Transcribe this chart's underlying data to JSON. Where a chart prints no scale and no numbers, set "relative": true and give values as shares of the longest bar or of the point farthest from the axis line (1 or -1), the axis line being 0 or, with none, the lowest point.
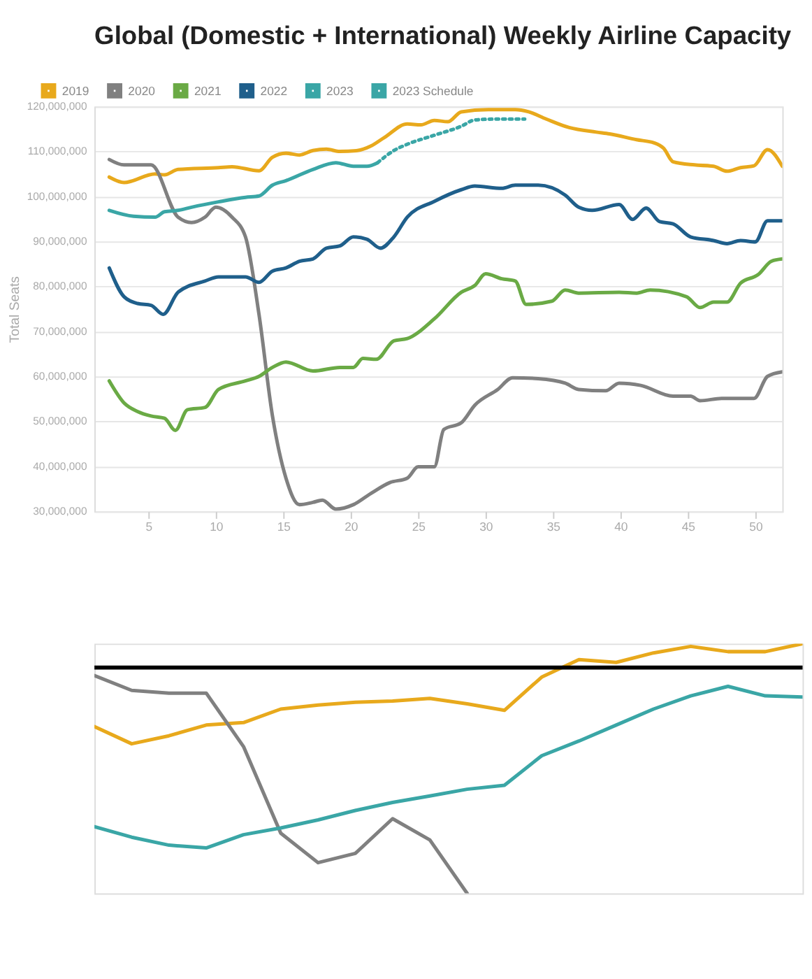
{
  "chart_data": [
    {
      "type": "line",
      "title": "Global (Domestic + International) Weekly Airline Capacity",
      "ylabel": "Total Seats",
      "xlim": [
        1,
        52
      ],
      "xticks": [
        5,
        10,
        15,
        20,
        25,
        30,
        35,
        40,
        45,
        50
      ],
      "ylim": [
        30000000,
        120000000
      ],
      "yticks": [
        {
          "value": 30000000,
          "label": "30,000,000"
        },
        {
          "value": 40000000,
          "label": "40,000,000"
        },
        {
          "value": 50000000,
          "label": "50,000,000"
        },
        {
          "value": 60000000,
          "label": "60,000,000"
        },
        {
          "value": 70000000,
          "label": "70,000,000"
        },
        {
          "value": 80000000,
          "label": "80,000,000"
        },
        {
          "value": 90000000,
          "label": "90,000,000"
        },
        {
          "value": 100000000,
          "label": "100,000,000"
        },
        {
          "value": 110000000,
          "label": "110,000,000"
        },
        {
          "value": 120000000,
          "label": "120,000,000"
        }
      ],
      "grid": "y",
      "legend": "top left",
      "marker": "none",
      "series": [
        {
          "name": "2019",
          "color": "#e8a91c",
          "line_style": "solid",
          "x": [
            2.1,
            3.2,
            5.5,
            6.2,
            7.2,
            10.2,
            11.2,
            13.2,
            14.2,
            15.2,
            16.2,
            17.2,
            18.2,
            19.2,
            20.5,
            21.5,
            22.5,
            24.2,
            25.2,
            26.2,
            27.2,
            28.2,
            30.2,
            32.2,
            33.2,
            34.5,
            36.2,
            38.2,
            39.2,
            41.2,
            42.5,
            43.2,
            43.9,
            45.5,
            46.9,
            47.9,
            48.9,
            49.9,
            50.9,
            52
          ],
          "values": [
            104300000,
            103100000,
            105000000,
            104800000,
            106000000,
            106400000,
            106600000,
            105700000,
            108700000,
            109600000,
            109200000,
            110200000,
            110500000,
            110000000,
            110200000,
            111200000,
            113100000,
            116100000,
            115900000,
            116900000,
            116600000,
            118800000,
            119300000,
            119300000,
            118800000,
            117200000,
            115300000,
            114300000,
            113900000,
            112600000,
            111900000,
            110700000,
            107700000,
            107000000,
            106700000,
            105600000,
            106400000,
            106800000,
            110400000,
            106700000
          ]
        },
        {
          "name": "2020",
          "color": "#808080",
          "line_style": "solid",
          "x": [
            2.1,
            3.2,
            5.2,
            7.2,
            8.2,
            9.2,
            10.0,
            11.2,
            12.2,
            13.2,
            14.2,
            15.2,
            16.2,
            17.2,
            17.9,
            18.9,
            20.2,
            21.5,
            22.9,
            24.2,
            25.0,
            26.2,
            26.9,
            28.2,
            29.2,
            30.9,
            32.0,
            33.9,
            35.9,
            36.9,
            38.9,
            39.9,
            41.5,
            43.9,
            45.2,
            45.9,
            47.5,
            49.9,
            50.9,
            52
          ],
          "values": [
            108200000,
            107000000,
            107000000,
            95400000,
            94200000,
            95400000,
            97600000,
            95400000,
            91000000,
            73800000,
            51200000,
            37400000,
            31500000,
            32000000,
            32500000,
            30500000,
            31500000,
            34000000,
            36400000,
            37400000,
            39900000,
            39900000,
            48200000,
            49700000,
            53600000,
            57100000,
            59700000,
            59500000,
            58500000,
            57100000,
            56800000,
            58500000,
            58000000,
            55600000,
            55600000,
            54600000,
            55100000,
            55100000,
            60000000,
            61000000
          ]
        },
        {
          "name": "2021",
          "color": "#6aaa45",
          "line_style": "solid",
          "x": [
            2.1,
            3.2,
            4.2,
            5.2,
            6.2,
            7.0,
            7.9,
            9.2,
            10.2,
            12.2,
            13.2,
            14.2,
            15.2,
            17.2,
            19.2,
            20.2,
            20.9,
            21.9,
            23.2,
            24.2,
            26.2,
            28.2,
            29.2,
            30.0,
            31.2,
            32.2,
            33.0,
            34.9,
            35.9,
            36.9,
            39.9,
            41.2,
            42.2,
            44.9,
            45.9,
            46.9,
            47.9,
            48.9,
            50.2,
            51.2,
            52
          ],
          "values": [
            59000000,
            54100000,
            52200000,
            51200000,
            50700000,
            48000000,
            52600000,
            53100000,
            57100000,
            59000000,
            60000000,
            62000000,
            63200000,
            61200000,
            62000000,
            62000000,
            64000000,
            63800000,
            67900000,
            68400000,
            72800000,
            78700000,
            80200000,
            82800000,
            81700000,
            81200000,
            76000000,
            76700000,
            79200000,
            78500000,
            78700000,
            78500000,
            79200000,
            77700000,
            75300000,
            76500000,
            76500000,
            80700000,
            82600000,
            85600000,
            86100000
          ]
        },
        {
          "name": "2022",
          "color": "#1f5f8b",
          "line_style": "solid",
          "x": [
            2.1,
            3.2,
            4.2,
            5.2,
            6.1,
            7.2,
            9.2,
            10.2,
            12.2,
            13.2,
            14.2,
            15.2,
            16.2,
            17.2,
            18.2,
            19.2,
            20.2,
            21.2,
            22.2,
            23.2,
            24.2,
            26.2,
            28.2,
            29.2,
            31.2,
            32.2,
            33.9,
            35.9,
            36.9,
            37.9,
            39.9,
            40.9,
            41.9,
            42.9,
            43.9,
            45.2,
            46.9,
            47.9,
            48.9,
            50.0,
            50.9,
            52
          ],
          "values": [
            84100000,
            77700000,
            76200000,
            75800000,
            73800000,
            78700000,
            81200000,
            82100000,
            82100000,
            80900000,
            83400000,
            84100000,
            85600000,
            86100000,
            88500000,
            89000000,
            91000000,
            90500000,
            88500000,
            91000000,
            95400000,
            98900000,
            101500000,
            102300000,
            101800000,
            102500000,
            102500000,
            100300000,
            97600000,
            96900000,
            98200000,
            94900000,
            97400000,
            94400000,
            93900000,
            91000000,
            90200000,
            89500000,
            90200000,
            89900000,
            94600000,
            94600000
          ]
        },
        {
          "name": "2023",
          "color": "#3aa6a6",
          "line_style": "solid",
          "x": [
            2.1,
            3.9,
            5.5,
            6.2,
            7.2,
            8.2,
            10.2,
            12.2,
            13.2,
            14.2,
            15.2,
            17.2,
            18.9,
            20.2,
            21.2,
            22.0
          ],
          "values": [
            96900000,
            95600000,
            95400000,
            96600000,
            96900000,
            97600000,
            98800000,
            99800000,
            100100000,
            102500000,
            103500000,
            106000000,
            107500000,
            106700000,
            106700000,
            107500000
          ]
        },
        {
          "name": "2023 Schedule",
          "color": "#3aa6a6",
          "line_style": "dotted",
          "x": [
            22.0,
            23.2,
            24.2,
            26.2,
            28.2,
            29.2,
            30.9,
            32.9
          ],
          "values": [
            107500000,
            110200000,
            111600000,
            113600000,
            115600000,
            117000000,
            117200000,
            117200000
          ]
        }
      ]
    },
    {
      "type": "line",
      "relative": true,
      "categories": [
        null,
        null,
        null,
        null,
        null,
        null,
        null,
        null,
        null,
        null,
        null,
        null,
        null,
        null,
        null,
        null,
        null,
        null,
        null,
        null
      ],
      "legend": false,
      "tick_labels": false,
      "marker": "none",
      "ref_lines": [
        {
          "axis": "y",
          "value": 0.904,
          "color": "#000000",
          "line_style": "solid"
        }
      ],
      "series": [
        {
          "color": "#e8a91c",
          "line_style": "solid",
          "values": [
            0.668,
            0.599,
            0.631,
            0.674,
            0.684,
            0.738,
            0.754,
            0.765,
            0.77,
            0.781,
            0.759,
            0.733,
            0.866,
            0.936,
            0.925,
            0.963,
            0.989,
            0.968,
            0.968,
            1
          ]
        },
        {
          "color": "#808080",
          "line_style": "solid",
          "values": [
            0.872,
            0.813,
            0.802,
            0.802,
            0.588,
            0.241,
            0.123,
            0.16,
            0.299,
            0.214,
            0,
            null,
            null,
            null,
            null,
            null,
            null,
            null,
            null,
            null
          ]
        },
        {
          "color": "#3aa6a6",
          "line_style": "solid",
          "values": [
            0.267,
            0.225,
            0.193,
            0.182,
            0.235,
            0.262,
            0.294,
            0.332,
            0.364,
            0.39,
            0.417,
            0.433,
            0.551,
            0.61,
            0.674,
            0.738,
            0.791,
            0.829,
            0.791,
            0.786
          ]
        }
      ]
    }
  ]
}
